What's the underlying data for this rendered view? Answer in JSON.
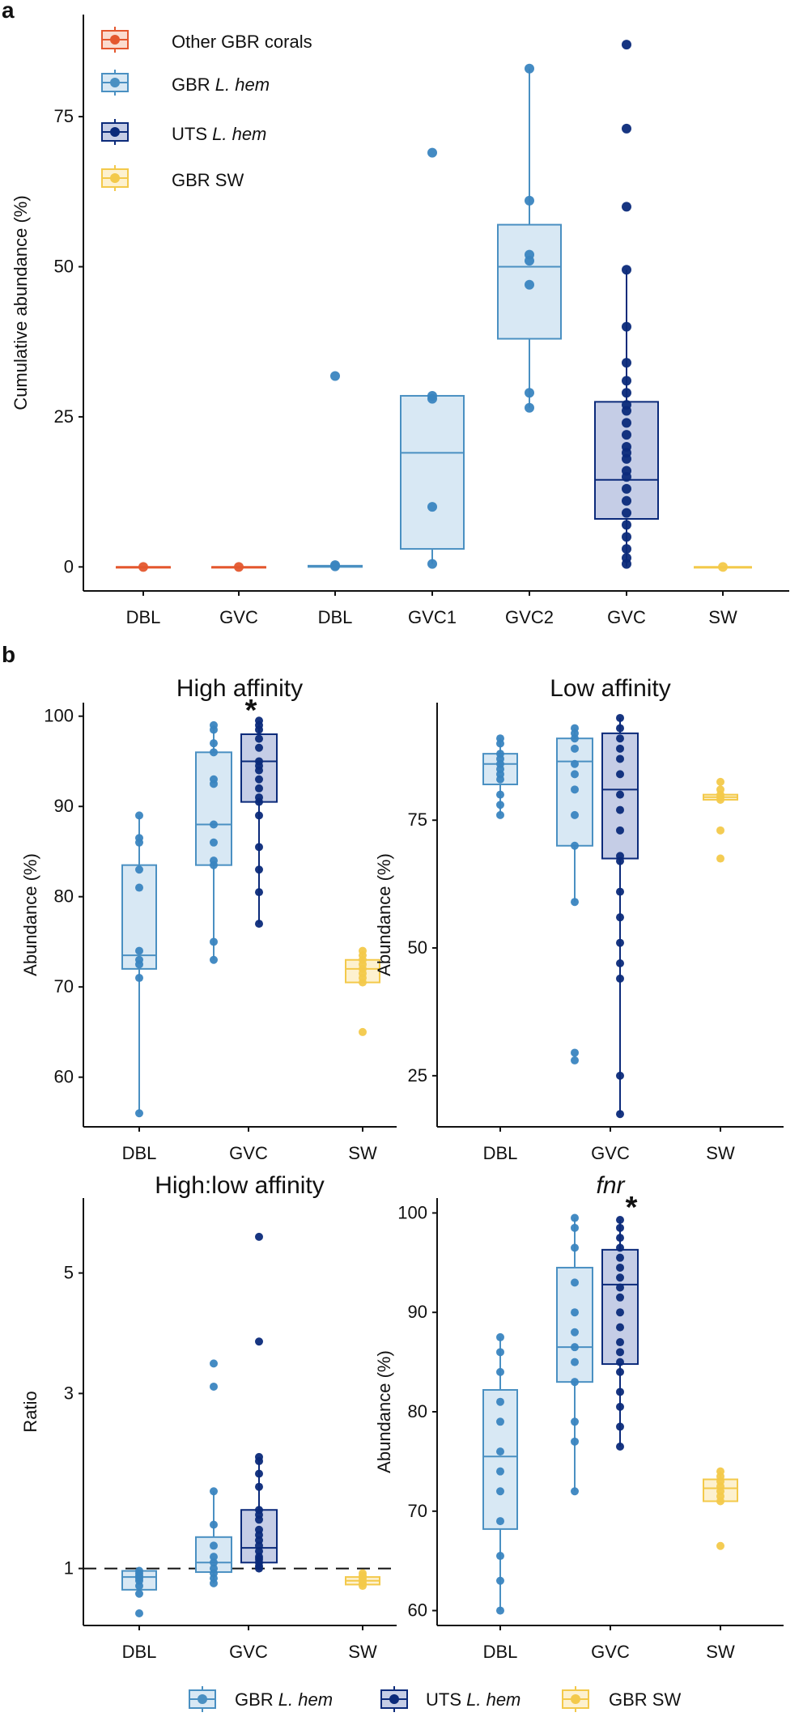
{
  "figure": {
    "panel_a_label": "a",
    "panel_b_label": "b"
  },
  "legend_a": {
    "entries": [
      {
        "prefix": "Other GBR corals",
        "italic": "",
        "color": "#e4572e",
        "fill": "#fbdccf"
      },
      {
        "prefix": "GBR ",
        "italic": "L. hem",
        "color": "#4a90c2",
        "fill": "#d8e8f4"
      },
      {
        "prefix": "UTS ",
        "italic": "L. hem",
        "color": "#0b2a7a",
        "fill": "#c5cde6"
      },
      {
        "prefix": "GBR SW",
        "italic": "",
        "color": "#f3c94a",
        "fill": "#fdf1cf"
      }
    ]
  },
  "legend_b": {
    "entries": [
      {
        "prefix": "GBR ",
        "italic": "L. hem",
        "color": "#4a90c2",
        "fill": "#d8e8f4"
      },
      {
        "prefix": "UTS ",
        "italic": "L. hem",
        "color": "#0b2a7a",
        "fill": "#c5cde6"
      },
      {
        "prefix": "GBR SW",
        "italic": "",
        "color": "#f3c94a",
        "fill": "#fdf1cf"
      }
    ]
  },
  "colors": {
    "other": "#e4572e",
    "otherFill": "#fbdccf",
    "gbr": "#4a90c2",
    "gbrFill": "#d8e8f4",
    "gbrDot": "#3a85c0",
    "uts": "#0b2a7a",
    "utsFill": "#c5cde6",
    "sw": "#f3c94a",
    "swFill": "#fdf1cf",
    "axis": "#111111"
  },
  "chart_data": [
    {
      "id": "a",
      "type": "box",
      "title": "",
      "ylabel": "Cumulative abundance (%)",
      "xlabel": "",
      "ylim": [
        -4,
        92
      ],
      "yticks": [
        0,
        25,
        50,
        75
      ],
      "scale": "linear",
      "categories": [
        "DBL",
        "GVC",
        "DBL",
        "GVC1",
        "GVC2",
        "GVC",
        "SW"
      ],
      "boxes": [
        {
          "category": "DBL",
          "group": "other",
          "q1": 0,
          "median": 0,
          "q3": 0,
          "wlo": 0,
          "whi": 0,
          "points": [
            0
          ]
        },
        {
          "category": "GVC",
          "group": "other",
          "q1": 0,
          "median": 0,
          "q3": 0,
          "wlo": 0,
          "whi": 0,
          "points": [
            0
          ]
        },
        {
          "category": "DBL",
          "group": "gbr",
          "q1": 0,
          "median": 0.1,
          "q3": 0.2,
          "wlo": 0,
          "whi": 0.3,
          "points": [
            31.8,
            0.3,
            0.1
          ]
        },
        {
          "category": "GVC1",
          "group": "gbr",
          "q1": 3,
          "median": 19,
          "q3": 28.5,
          "wlo": 0.5,
          "whi": 28.5,
          "points": [
            69,
            28.5,
            28,
            10,
            0.5
          ]
        },
        {
          "category": "GVC2",
          "group": "gbr",
          "q1": 38,
          "median": 50,
          "q3": 57,
          "wlo": 26.5,
          "whi": 83,
          "points": [
            83,
            61,
            52,
            51,
            47,
            29,
            26.5
          ]
        },
        {
          "category": "GVC",
          "group": "uts",
          "q1": 8,
          "median": 14.5,
          "q3": 27.5,
          "wlo": 0,
          "whi": 49.5,
          "points": [
            87,
            73,
            60,
            49.5,
            40,
            34,
            31,
            29,
            27,
            26,
            24,
            22,
            20,
            19,
            18,
            16,
            15,
            13,
            11,
            9,
            7,
            5,
            3,
            1.5,
            0.5
          ]
        },
        {
          "category": "SW",
          "group": "sw",
          "q1": 0,
          "median": 0,
          "q3": 0,
          "wlo": 0,
          "whi": 0,
          "points": [
            0
          ]
        }
      ]
    },
    {
      "id": "high",
      "type": "box",
      "title": "High affinity",
      "ylabel": "Abundance (%)",
      "xlabel": "",
      "ylim": [
        54.5,
        101.5
      ],
      "yticks": [
        60,
        70,
        80,
        90,
        100
      ],
      "scale": "linear",
      "categories": [
        "DBL",
        "GVC",
        "SW"
      ],
      "star": "*",
      "boxes": [
        {
          "category": "DBL",
          "group": "gbr",
          "q1": 72,
          "median": 73.5,
          "q3": 83.5,
          "wlo": 56,
          "whi": 89,
          "points": [
            89,
            86.5,
            86,
            83,
            81,
            74,
            73,
            72.5,
            71,
            56
          ]
        },
        {
          "category": "GVC",
          "group": "gbr",
          "q1": 83.5,
          "median": 88,
          "q3": 96,
          "wlo": 73,
          "whi": 99,
          "points": [
            99,
            98.5,
            97,
            96,
            93,
            92.5,
            88,
            86,
            84,
            83.5,
            75,
            73
          ]
        },
        {
          "category": "GVC",
          "group": "uts",
          "q1": 90.5,
          "median": 95,
          "q3": 98,
          "wlo": 77,
          "whi": 99.5,
          "points": [
            99.5,
            99,
            98.5,
            97.5,
            96.5,
            95,
            94.5,
            94,
            93,
            92,
            91,
            90.5,
            89,
            85.5,
            83,
            80.5,
            77
          ]
        },
        {
          "category": "SW",
          "group": "sw",
          "q1": 70.5,
          "median": 72,
          "q3": 73,
          "wlo": 70.5,
          "whi": 74,
          "points": [
            74,
            73.5,
            73,
            72.5,
            72,
            71.5,
            71,
            70.5,
            65
          ]
        }
      ]
    },
    {
      "id": "low",
      "type": "box",
      "title": "Low affinity",
      "ylabel": "Abundance (%)",
      "xlabel": "",
      "ylim": [
        15,
        98
      ],
      "yticks": [
        25,
        50,
        75
      ],
      "scale": "linear",
      "categories": [
        "DBL",
        "GVC",
        "SW"
      ],
      "boxes": [
        {
          "category": "DBL",
          "group": "gbr",
          "q1": 82,
          "median": 86,
          "q3": 88,
          "wlo": 76,
          "whi": 91,
          "points": [
            91,
            90,
            88,
            87,
            86,
            85,
            84,
            83,
            80,
            78,
            76
          ]
        },
        {
          "category": "GVC",
          "group": "gbr",
          "q1": 70,
          "median": 86.5,
          "q3": 91,
          "wlo": 59,
          "whi": 93,
          "points": [
            93,
            92,
            91,
            89,
            86,
            84,
            81,
            76,
            70,
            59,
            29.5,
            28
          ]
        },
        {
          "category": "GVC",
          "group": "uts",
          "q1": 67.5,
          "median": 81,
          "q3": 92,
          "wlo": 17.5,
          "whi": 95,
          "points": [
            95,
            93,
            91,
            89,
            87,
            84,
            80,
            77,
            73,
            68,
            67,
            61,
            56,
            51,
            47,
            44,
            25,
            17.5
          ]
        },
        {
          "category": "SW",
          "group": "sw",
          "q1": 79,
          "median": 79.5,
          "q3": 80,
          "wlo": 79,
          "whi": 80,
          "points": [
            82.5,
            81,
            80,
            79.5,
            79,
            73,
            67.5
          ]
        }
      ]
    },
    {
      "id": "ratio",
      "type": "box",
      "title": "High:low affinity",
      "ylabel": "Ratio",
      "xlabel": "",
      "ylim": [
        0.58,
        6.5
      ],
      "yticks": [
        1,
        3,
        5
      ],
      "scale": "sqrt",
      "categories": [
        "DBL",
        "GVC",
        "SW"
      ],
      "refline": 1,
      "boxes": [
        {
          "category": "DBL",
          "group": "gbr",
          "q1": 0.83,
          "median": 0.93,
          "q3": 0.98,
          "wlo": 0.83,
          "whi": 0.98,
          "points": [
            0.98,
            0.96,
            0.94,
            0.92,
            0.9,
            0.86,
            0.8,
            0.66
          ]
        },
        {
          "category": "GVC",
          "group": "gbr",
          "q1": 0.97,
          "median": 1.05,
          "q3": 1.28,
          "wlo": 0.88,
          "whi": 1.75,
          "points": [
            3.45,
            3.1,
            1.75,
            1.4,
            1.2,
            1.1,
            1.05,
            1.0,
            0.96,
            0.92,
            0.88
          ]
        },
        {
          "category": "GVC",
          "group": "uts",
          "q1": 1.05,
          "median": 1.18,
          "q3": 1.55,
          "wlo": 1.0,
          "whi": 2.15,
          "points": [
            5.7,
            3.8,
            2.15,
            2.1,
            1.95,
            1.8,
            1.55,
            1.5,
            1.45,
            1.35,
            1.3,
            1.25,
            1.2,
            1.15,
            1.1,
            1.08,
            1.05,
            1.02,
            1.0
          ]
        },
        {
          "category": "SW",
          "group": "sw",
          "q1": 0.87,
          "median": 0.9,
          "q3": 0.93,
          "wlo": 0.86,
          "whi": 0.95,
          "points": [
            0.96,
            0.94,
            0.92,
            0.9,
            0.88,
            0.86
          ]
        }
      ]
    },
    {
      "id": "fnr",
      "type": "box",
      "title": "fnr",
      "title_italic": true,
      "ylabel": "Abundance (%)",
      "xlabel": "",
      "ylim": [
        58.5,
        101.5
      ],
      "yticks": [
        60,
        70,
        80,
        90,
        100
      ],
      "scale": "linear",
      "categories": [
        "DBL",
        "GVC",
        "SW"
      ],
      "star": "*",
      "boxes": [
        {
          "category": "DBL",
          "group": "gbr",
          "q1": 68.2,
          "median": 75.5,
          "q3": 82.2,
          "wlo": 60,
          "whi": 87.5,
          "points": [
            87.5,
            86,
            84,
            81,
            79,
            76,
            74,
            72,
            69,
            65.5,
            63,
            60
          ]
        },
        {
          "category": "GVC",
          "group": "gbr",
          "q1": 83,
          "median": 86.5,
          "q3": 94.5,
          "wlo": 72,
          "whi": 99.5,
          "points": [
            99.5,
            98.5,
            96.5,
            93,
            90,
            88,
            86.5,
            85,
            83,
            79,
            77,
            72
          ]
        },
        {
          "category": "GVC",
          "group": "uts",
          "q1": 84.8,
          "median": 92.8,
          "q3": 96.3,
          "wlo": 76.5,
          "whi": 99.3,
          "points": [
            99.3,
            98.5,
            97.5,
            96.5,
            95.5,
            94.5,
            93.5,
            92.5,
            91.5,
            90,
            88.5,
            87,
            86,
            85,
            84,
            82,
            80.5,
            78.5,
            76.5
          ]
        },
        {
          "category": "SW",
          "group": "sw",
          "q1": 71,
          "median": 72.3,
          "q3": 73.2,
          "wlo": 71,
          "whi": 74,
          "points": [
            74,
            73.5,
            73,
            72.5,
            72,
            71.5,
            71,
            66.5
          ]
        }
      ]
    }
  ]
}
